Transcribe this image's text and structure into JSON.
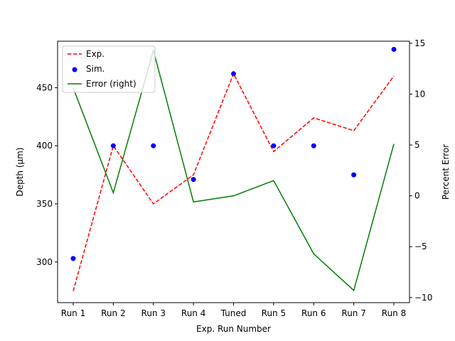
{
  "chart_data": {
    "type": "line",
    "categories": [
      "Run 1",
      "Run 2",
      "Run 3",
      "Run 4",
      "Tuned",
      "Run 5",
      "Run 6",
      "Run 7",
      "Run 8"
    ],
    "xlabel": "Exp. Run Number",
    "ylabel": "Depth  (μm)",
    "ylabel_right": "Percent Error",
    "ylim": [
      265,
      490
    ],
    "ylim_right": [
      -10.5,
      15.2
    ],
    "yticks": [
      300,
      350,
      400,
      450
    ],
    "yticks_right": [
      -10,
      -5,
      0,
      5,
      10,
      15
    ],
    "grid": false,
    "legend_position": "top-left",
    "series": [
      {
        "name": "Exp.",
        "kind": "line",
        "axis": "left",
        "color": "#ff0000",
        "dash": "dashed",
        "values": [
          275,
          400,
          350,
          375,
          462,
          395,
          424,
          413,
          460
        ]
      },
      {
        "name": "Sim.",
        "kind": "scatter",
        "axis": "left",
        "color": "#0000ff",
        "values": [
          303,
          400,
          400,
          371,
          462,
          400,
          400,
          375,
          483
        ]
      },
      {
        "name": "Error (right)",
        "kind": "line",
        "axis": "right",
        "color": "#008000",
        "dash": "solid",
        "values": [
          10.6,
          0.3,
          14.3,
          -0.6,
          0.0,
          1.5,
          -5.7,
          -9.3,
          5.1
        ]
      }
    ]
  }
}
